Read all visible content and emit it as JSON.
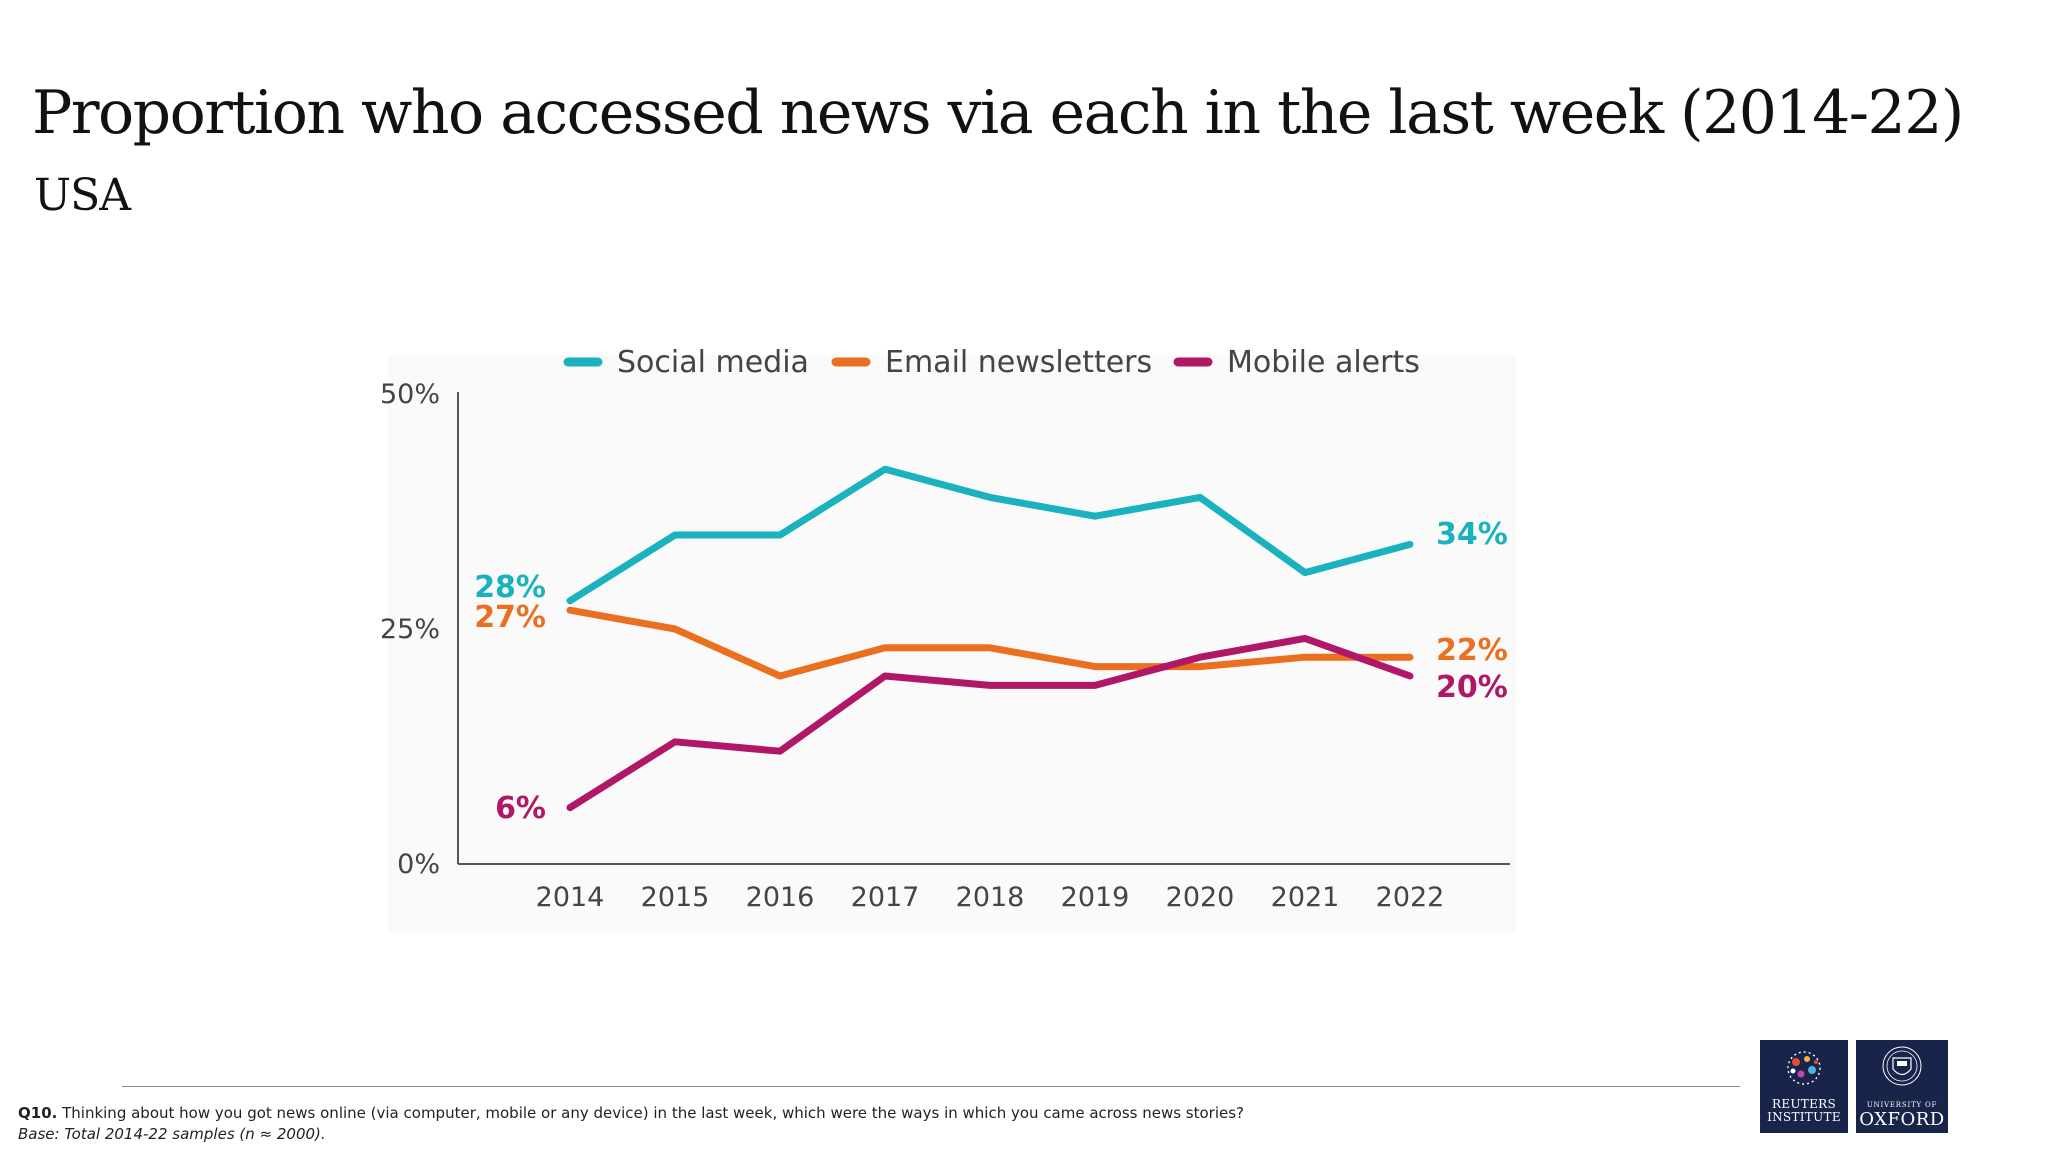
{
  "page": {
    "title": "Proportion who accessed news via each in the last week (2014-22)",
    "subtitle": "USA"
  },
  "colors": {
    "social_media": "#19b2be",
    "email_newsletters": "#ea7020",
    "mobile_alerts": "#b01766",
    "axis": "#555555",
    "text": "#444444",
    "logo_bg": "#18244a"
  },
  "chart_data": {
    "type": "line",
    "x": [
      "2014",
      "2015",
      "2016",
      "2017",
      "2018",
      "2019",
      "2020",
      "2021",
      "2022"
    ],
    "series": [
      {
        "name": "Social media",
        "color": "#19b2be",
        "values": [
          28,
          35,
          35,
          42,
          39,
          37,
          39,
          31,
          34
        ],
        "start_label": "28%",
        "end_label": "34%"
      },
      {
        "name": "Email newsletters",
        "color": "#ea7020",
        "values": [
          27,
          25,
          20,
          23,
          23,
          21,
          21,
          22,
          22
        ],
        "start_label": "27%",
        "end_label": "22%"
      },
      {
        "name": "Mobile alerts",
        "color": "#b01766",
        "values": [
          6,
          13,
          12,
          20,
          19,
          19,
          22,
          24,
          20
        ],
        "start_label": "6%",
        "end_label": "20%"
      }
    ],
    "ylim": [
      0,
      50
    ],
    "yticks": [
      "0%",
      "25%",
      "50%"
    ],
    "ytick_values": [
      0,
      25,
      50
    ],
    "grid": false,
    "legend": "top"
  },
  "footer": {
    "question_label": "Q10.",
    "question_text": "Thinking about how you got news online (via computer, mobile or any device) in the last week, which were the ways in which you came across news stories?",
    "base_text": "Base: Total 2014-22 samples (n ≈ 2000)."
  },
  "logos": {
    "reuters": {
      "line1": "REUTERS",
      "line2": "INSTITUTE",
      "icon": "dots-circle-icon"
    },
    "oxford": {
      "line1": "UNIVERSITY OF",
      "line2": "OXFORD",
      "icon": "crest-icon"
    }
  }
}
